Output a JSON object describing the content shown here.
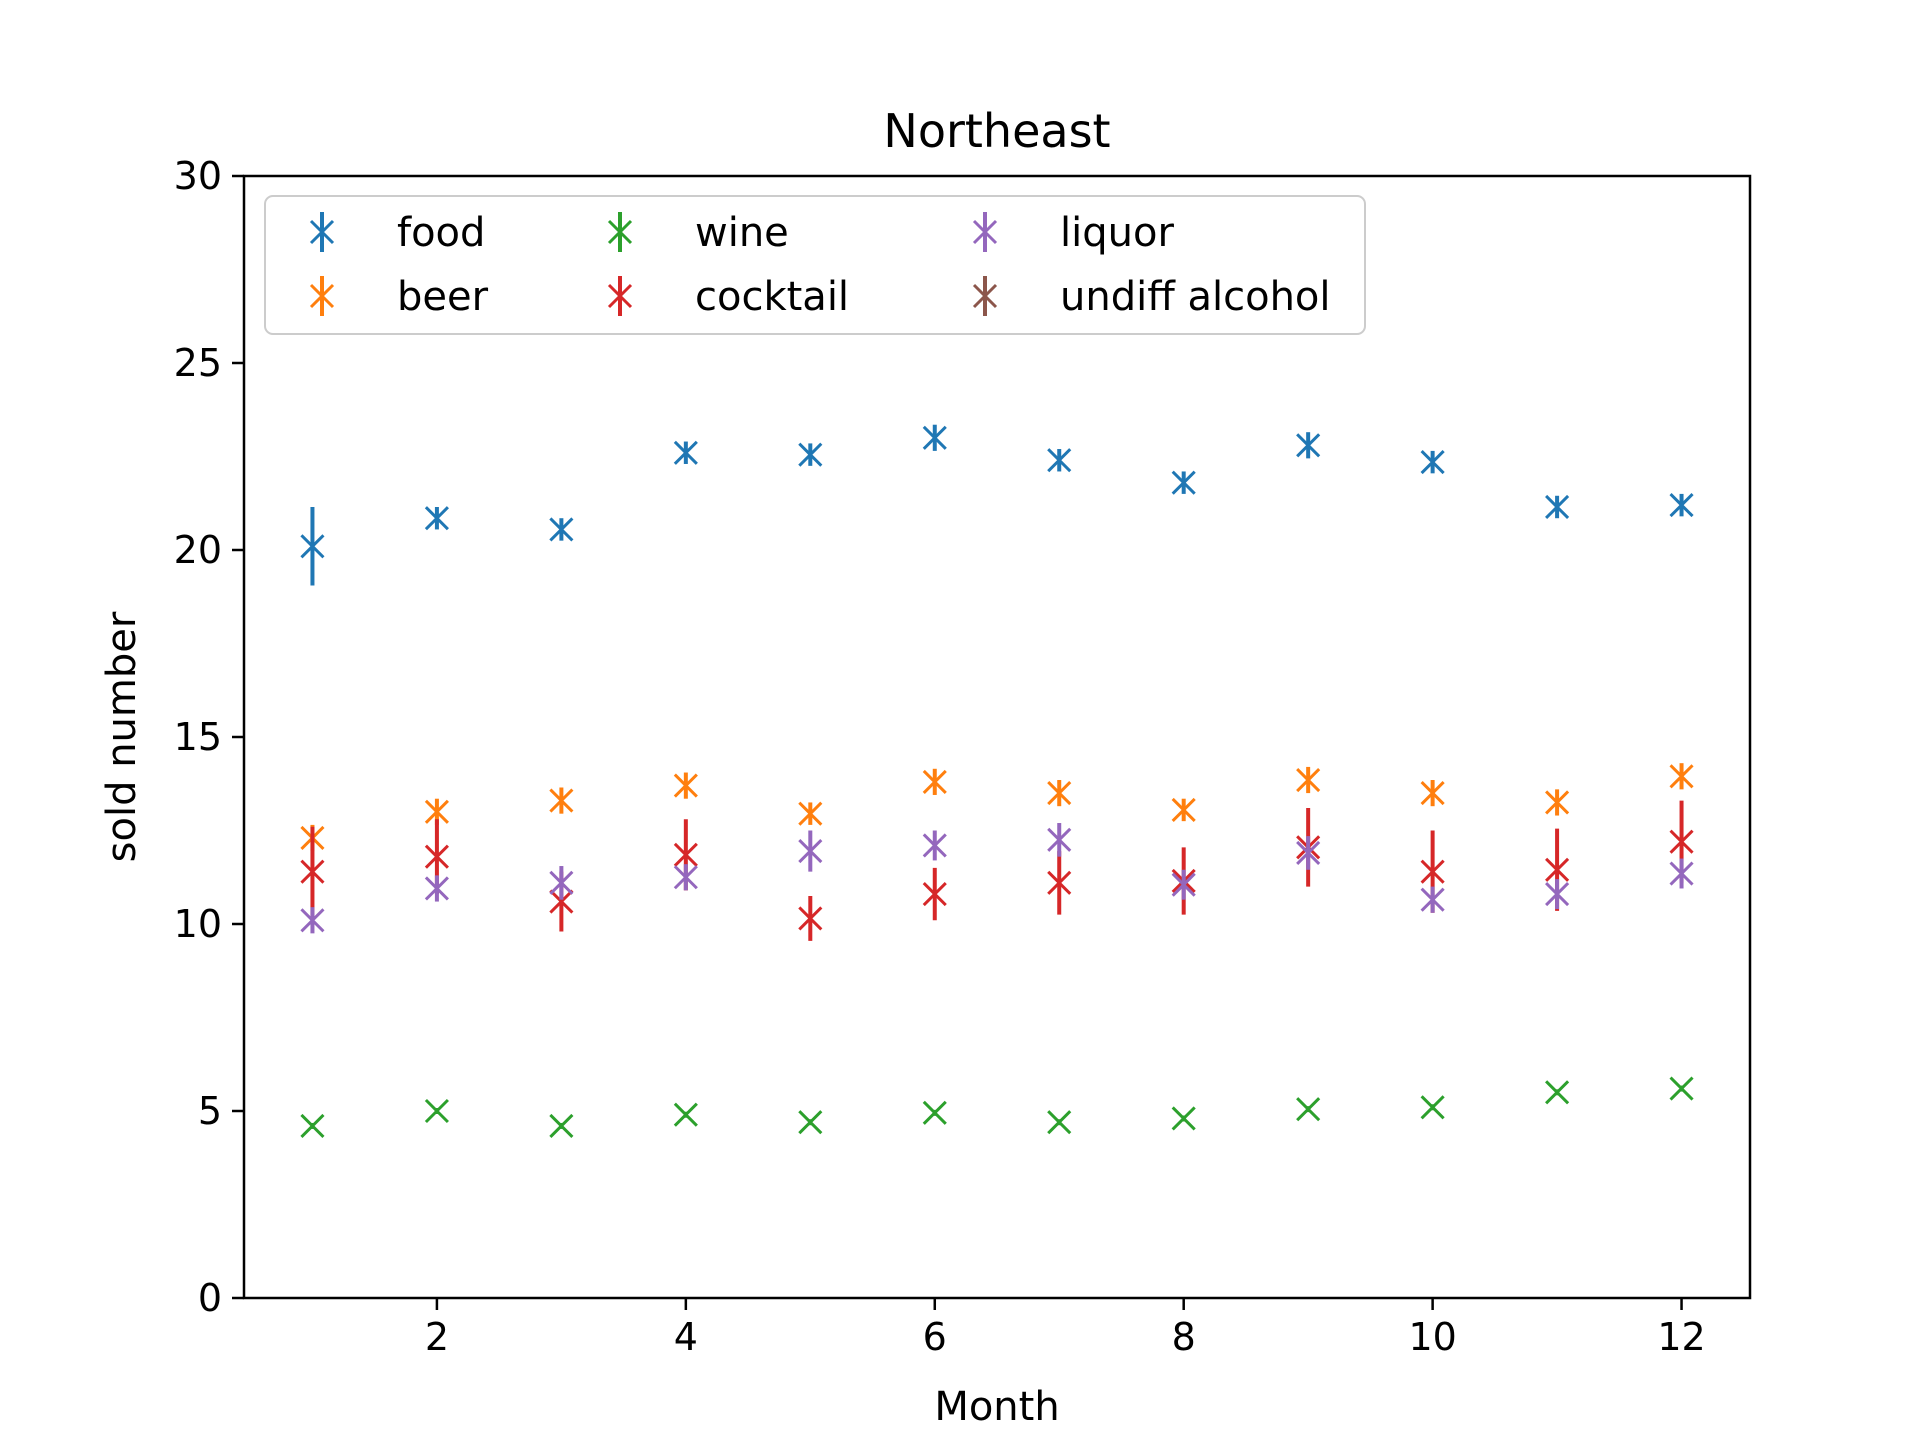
{
  "chart_data": {
    "type": "scatter",
    "title": "Northeast",
    "xlabel": "Month",
    "ylabel": "sold number",
    "xlim": [
      0.45,
      12.55
    ],
    "ylim": [
      0,
      30
    ],
    "x_ticks": [
      2,
      4,
      6,
      8,
      10,
      12
    ],
    "y_ticks": [
      0,
      5,
      10,
      15,
      20,
      25,
      30
    ],
    "grid": false,
    "legend_position": "top-left",
    "legend_columns": 3,
    "marker": "x with vertical error bar",
    "x": [
      1,
      2,
      3,
      4,
      5,
      6,
      7,
      8,
      9,
      10,
      11,
      12
    ],
    "series": [
      {
        "name": "food",
        "color": "#1f77b4",
        "values": [
          20.1,
          20.85,
          20.55,
          22.6,
          22.55,
          23.0,
          22.4,
          21.8,
          22.8,
          22.35,
          21.15,
          21.2
        ],
        "errors": [
          1.05,
          0.3,
          0.3,
          0.3,
          0.3,
          0.35,
          0.3,
          0.3,
          0.35,
          0.3,
          0.3,
          0.3
        ]
      },
      {
        "name": "beer",
        "color": "#ff7f0e",
        "values": [
          12.3,
          13.0,
          13.3,
          13.7,
          12.95,
          13.8,
          13.5,
          13.05,
          13.85,
          13.5,
          13.25,
          13.95
        ],
        "errors": [
          0.35,
          0.35,
          0.35,
          0.35,
          0.3,
          0.35,
          0.35,
          0.3,
          0.35,
          0.35,
          0.35,
          0.35
        ]
      },
      {
        "name": "wine",
        "color": "#2ca02c",
        "values": [
          4.6,
          5.0,
          4.6,
          4.9,
          4.7,
          4.95,
          4.7,
          4.8,
          5.05,
          5.1,
          5.5,
          5.6
        ],
        "errors": [
          0.08,
          0.08,
          0.08,
          0.08,
          0.08,
          0.08,
          0.08,
          0.08,
          0.08,
          0.08,
          0.08,
          0.08
        ]
      },
      {
        "name": "cocktail",
        "color": "#d62728",
        "values": [
          11.4,
          11.8,
          10.6,
          11.85,
          10.15,
          10.8,
          11.1,
          11.15,
          12.05,
          11.4,
          11.45,
          12.2
        ],
        "errors": [
          1.2,
          1.0,
          0.8,
          0.95,
          0.6,
          0.7,
          0.85,
          0.9,
          1.05,
          1.1,
          1.1,
          1.1
        ]
      },
      {
        "name": "liquor",
        "color": "#9467bd",
        "values": [
          10.1,
          10.95,
          11.1,
          11.25,
          11.95,
          12.1,
          12.25,
          11.05,
          11.9,
          10.65,
          10.8,
          11.35
        ],
        "errors": [
          0.35,
          0.35,
          0.45,
          0.35,
          0.55,
          0.4,
          0.45,
          0.4,
          0.45,
          0.35,
          0.4,
          0.4
        ]
      },
      {
        "name": "undiff alcohol",
        "color": "#8c564b",
        "values": [],
        "errors": []
      }
    ]
  }
}
